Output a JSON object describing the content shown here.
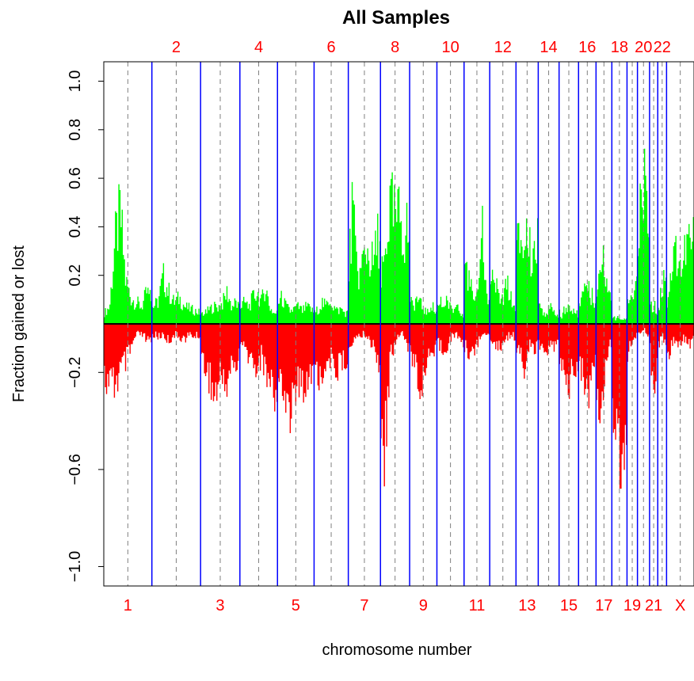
{
  "chart_data": {
    "type": "bar",
    "title": "All Samples",
    "xlabel": "chromosome number",
    "ylabel": "Fraction gained or lost",
    "ylim": [
      -1.08,
      1.08
    ],
    "yticks": [
      -1.0,
      -0.6,
      -0.2,
      0.2,
      0.4,
      0.6,
      0.8,
      1.0
    ],
    "ytick_labels": [
      "−1.0",
      "−0.6",
      "−0.2",
      "0.2",
      "0.4",
      "0.6",
      "0.8",
      "1.0"
    ],
    "chromosome_labels_bottom": [
      "1",
      "3",
      "5",
      "7",
      "9",
      "11",
      "13",
      "15",
      "17",
      "19",
      "21",
      "X"
    ],
    "chromosome_labels_top": [
      "2",
      "4",
      "6",
      "8",
      "10",
      "12",
      "14",
      "16",
      "18",
      "20",
      "22"
    ],
    "chromosome_x_range": [
      0,
      23
    ],
    "chromosomes": [
      "1",
      "2",
      "3",
      "4",
      "5",
      "6",
      "7",
      "8",
      "9",
      "10",
      "11",
      "12",
      "13",
      "14",
      "15",
      "16",
      "17",
      "18",
      "19",
      "20",
      "21",
      "22",
      "X"
    ],
    "chromosome_start_fraction": [
      0.0,
      0.0815,
      0.164,
      0.2306,
      0.2943,
      0.3563,
      0.4143,
      0.4688,
      0.5182,
      0.5644,
      0.6104,
      0.6539,
      0.6984,
      0.7361,
      0.7714,
      0.8044,
      0.834,
      0.8608,
      0.8865,
      0.9042,
      0.9247,
      0.9386,
      0.9535
    ],
    "chromosome_end_fraction": 1.0,
    "boundary_color": "#0000ff",
    "centromere_color": "#808080",
    "gain_color": "#00ff00",
    "loss_color": "#ff0000",
    "label_color": "#ff0000",
    "series": [
      {
        "name": "gained",
        "chromosome_profile": [
          [
            0.05,
            0.08,
            0.38,
            0.52,
            0.2,
            0.12,
            0.1,
            0.08,
            0.15,
            0.1
          ],
          [
            0.08,
            0.1,
            0.22,
            0.15,
            0.1,
            0.12,
            0.08,
            0.07,
            0.06,
            0.05
          ],
          [
            0.05,
            0.05,
            0.07,
            0.08,
            0.08,
            0.1,
            0.15,
            0.08,
            0.1,
            0.06
          ],
          [
            0.08,
            0.1,
            0.08,
            0.12,
            0.15,
            0.1,
            0.18,
            0.08,
            0.05,
            0.05
          ],
          [
            0.1,
            0.12,
            0.08,
            0.06,
            0.07,
            0.08,
            0.06,
            0.08,
            0.07,
            0.05
          ],
          [
            0.05,
            0.07,
            0.1,
            0.08,
            0.12,
            0.08,
            0.06,
            0.07,
            0.05,
            0.05
          ],
          [
            0.25,
            0.55,
            0.3,
            0.22,
            0.3,
            0.35,
            0.3,
            0.28,
            0.4,
            0.42
          ],
          [
            0.2,
            0.3,
            0.45,
            0.55,
            0.5,
            0.48,
            0.52,
            0.4,
            0.45,
            0.35
          ],
          [
            0.1,
            0.08,
            0.12,
            0.1,
            0.08,
            0.06,
            0.05,
            0.1,
            0.06,
            0.05
          ],
          [
            0.08,
            0.1,
            0.08,
            0.12,
            0.08,
            0.06,
            0.08,
            0.1,
            0.05,
            0.04
          ],
          [
            0.28,
            0.25,
            0.18,
            0.12,
            0.1,
            0.15,
            0.6,
            0.2,
            0.12,
            0.15
          ],
          [
            0.15,
            0.2,
            0.18,
            0.12,
            0.1,
            0.15,
            0.18,
            0.12,
            0.08,
            0.1
          ],
          [
            0.35,
            0.38,
            0.4,
            0.35,
            0.42,
            0.38,
            0.3,
            0.35,
            0.38,
            0.4
          ],
          [
            0.1,
            0.08,
            0.06,
            0.05,
            0.06,
            0.08,
            0.05,
            0.06,
            0.04,
            0.05
          ],
          [
            0.05,
            0.04,
            0.08,
            0.06,
            0.1,
            0.05,
            0.06,
            0.08,
            0.05,
            0.04
          ],
          [
            0.1,
            0.12,
            0.15,
            0.18,
            0.2,
            0.15,
            0.12,
            0.18,
            0.1,
            0.08
          ],
          [
            0.15,
            0.2,
            0.25,
            0.3,
            0.28,
            0.22,
            0.18,
            0.25,
            0.15,
            0.12
          ],
          [
            0.02,
            0.03,
            0.02,
            0.03,
            0.02,
            0.02,
            0.03,
            0.02,
            0.02,
            0.02
          ],
          [
            0.1,
            0.12,
            0.15,
            0.12,
            0.1,
            0.12,
            0.15,
            0.18,
            0.2,
            0.15
          ],
          [
            0.3,
            0.45,
            0.55,
            0.62,
            0.68,
            0.7,
            0.66,
            0.6,
            0.55,
            0.5
          ],
          [
            0.1,
            0.12,
            0.08,
            0.06,
            0.08,
            0.1,
            0.05,
            0.04,
            0.05,
            0.06
          ],
          [
            0.08,
            0.1,
            0.12,
            0.15,
            0.18,
            0.2,
            0.22,
            0.25,
            0.3,
            0.35
          ],
          [
            0.1,
            0.2,
            0.3,
            0.35,
            0.3,
            0.25,
            0.35,
            0.4,
            0.35,
            0.42
          ]
        ]
      },
      {
        "name": "lost",
        "chromosome_profile": [
          [
            -0.25,
            -0.3,
            -0.28,
            -0.22,
            -0.18,
            -0.12,
            -0.05,
            -0.05,
            -0.08,
            -0.1
          ],
          [
            -0.05,
            -0.06,
            -0.05,
            -0.08,
            -0.05,
            -0.06,
            -0.07,
            -0.05,
            -0.06,
            -0.05
          ],
          [
            -0.15,
            -0.2,
            -0.25,
            -0.35,
            -0.28,
            -0.22,
            -0.3,
            -0.18,
            -0.2,
            -0.15
          ],
          [
            -0.1,
            -0.12,
            -0.15,
            -0.18,
            -0.2,
            -0.15,
            -0.22,
            -0.25,
            -0.3,
            -0.35
          ],
          [
            -0.25,
            -0.3,
            -0.35,
            -0.4,
            -0.32,
            -0.28,
            -0.3,
            -0.25,
            -0.22,
            -0.2
          ],
          [
            -0.2,
            -0.25,
            -0.22,
            -0.2,
            -0.18,
            -0.15,
            -0.22,
            -0.18,
            -0.2,
            -0.15
          ],
          [
            -0.1,
            -0.08,
            -0.05,
            -0.06,
            -0.05,
            -0.05,
            -0.08,
            -0.1,
            -0.15,
            -0.2
          ],
          [
            -0.45,
            -0.68,
            -0.35,
            -0.15,
            -0.1,
            -0.08,
            -0.06,
            -0.05,
            -0.1,
            -0.12
          ],
          [
            -0.1,
            -0.2,
            -0.15,
            -0.48,
            -0.25,
            -0.18,
            -0.15,
            -0.1,
            -0.12,
            -0.08
          ],
          [
            -0.08,
            -0.1,
            -0.12,
            -0.1,
            -0.08,
            -0.06,
            -0.05,
            -0.06,
            -0.08,
            -0.1
          ],
          [
            -0.1,
            -0.12,
            -0.15,
            -0.12,
            -0.1,
            -0.08,
            -0.06,
            -0.05,
            -0.05,
            -0.06
          ],
          [
            -0.06,
            -0.08,
            -0.1,
            -0.12,
            -0.1,
            -0.08,
            -0.06,
            -0.05,
            -0.06,
            -0.08
          ],
          [
            -0.1,
            -0.15,
            -0.18,
            -0.2,
            -0.15,
            -0.12,
            -0.1,
            -0.15,
            -0.12,
            -0.1
          ],
          [
            -0.08,
            -0.1,
            -0.12,
            -0.15,
            -0.1,
            -0.08,
            -0.12,
            -0.1,
            -0.08,
            -0.06
          ],
          [
            -0.15,
            -0.2,
            -0.25,
            -0.3,
            -0.28,
            -0.25,
            -0.22,
            -0.2,
            -0.25,
            -0.2
          ],
          [
            -0.15,
            -0.2,
            -0.25,
            -0.3,
            -0.35,
            -0.4,
            -0.3,
            -0.25,
            -0.2,
            -0.18
          ],
          [
            -0.3,
            -0.45,
            -0.5,
            -0.35,
            -0.25,
            -0.2,
            -0.15,
            -0.1,
            -0.12,
            -0.1
          ],
          [
            -0.35,
            -0.45,
            -0.5,
            -0.55,
            -0.58,
            -0.65,
            -0.55,
            -0.5,
            -0.52,
            -0.55
          ],
          [
            -0.15,
            -0.12,
            -0.1,
            -0.08,
            -0.12,
            -0.1,
            -0.08,
            -0.06,
            -0.05,
            -0.06
          ],
          [
            -0.05,
            -0.04,
            -0.03,
            -0.05,
            -0.04,
            -0.03,
            -0.04,
            -0.05,
            -0.04,
            -0.03
          ],
          [
            -0.1,
            -0.15,
            -0.25,
            -0.35,
            -0.42,
            -0.38,
            -0.3,
            -0.2,
            -0.15,
            -0.1
          ],
          [
            -0.1,
            -0.12,
            -0.08,
            -0.06,
            -0.05,
            -0.06,
            -0.08,
            -0.1,
            -0.12,
            -0.08
          ],
          [
            -0.15,
            -0.12,
            -0.1,
            -0.08,
            -0.1,
            -0.08,
            -0.06,
            -0.08,
            -0.1,
            -0.08
          ]
        ]
      }
    ]
  }
}
